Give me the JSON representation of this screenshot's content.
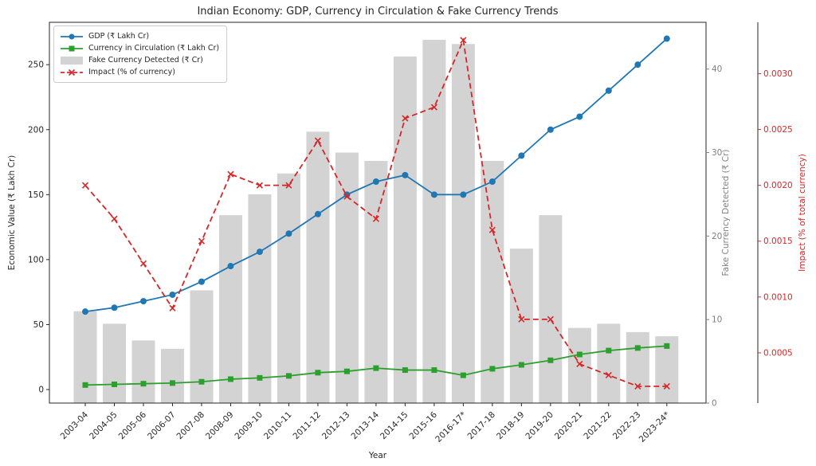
{
  "chart_data": {
    "type": "mixed",
    "title": "Indian Economy: GDP, Currency in Circulation & Fake Currency Trends",
    "xlabel": "Year",
    "categories": [
      "2003-04",
      "2004-05",
      "2005-06",
      "2006-07",
      "2007-08",
      "2008-09",
      "2009-10",
      "2010-11",
      "2011-12",
      "2012-13",
      "2013-14",
      "2014-15",
      "2015-16",
      "2016-17*",
      "2017-18",
      "2018-19",
      "2019-20",
      "2020-21",
      "2021-22",
      "2022-23",
      "2023-24*"
    ],
    "axes": {
      "left": {
        "label": "Economic Value (₹ Lakh Cr)",
        "ticks": [
          0,
          50,
          100,
          150,
          200,
          250
        ],
        "range": [
          -10.4,
          282.6
        ],
        "tick_decimals": 0,
        "color": "#262626"
      },
      "right_inner": {
        "label": "Fake Currency Detected (₹ Cr)",
        "ticks": [
          0,
          10,
          20,
          30,
          40
        ],
        "range": [
          0,
          45.6
        ],
        "tick_decimals": 0,
        "color": "#7f7f7f"
      },
      "right_outer": {
        "label": "Impact (% of total currency)",
        "ticks": [
          0.0005,
          0.001,
          0.0015,
          0.002,
          0.0025,
          0.003
        ],
        "range": [
          5e-05,
          0.00346
        ],
        "tick_decimals": 4,
        "color": "#d62728"
      }
    },
    "series": [
      {
        "name": "GDP (₹ Lakh Cr)",
        "type": "line",
        "marker": "circle",
        "dash": false,
        "axis": "left",
        "color": "#1f77b4",
        "values": [
          60,
          63,
          68,
          73,
          83,
          95,
          106,
          120,
          135,
          150,
          160,
          165,
          150,
          150,
          160,
          180,
          200,
          210,
          230,
          250,
          270
        ]
      },
      {
        "name": "Currency in Circulation (₹ Lakh Cr)",
        "type": "line",
        "marker": "square",
        "dash": false,
        "axis": "left",
        "color": "#2ca02c",
        "values": [
          3.5,
          4,
          4.5,
          5,
          6,
          8,
          9,
          10.5,
          13,
          14,
          16.5,
          15,
          15,
          11,
          16,
          19,
          22.5,
          27,
          30,
          32,
          33.5
        ]
      },
      {
        "name": "Fake Currency Detected (₹ Cr)",
        "type": "bar",
        "axis": "right_inner",
        "color": "#d3d3d3",
        "values": [
          11,
          9.5,
          7.5,
          6.5,
          13.5,
          22.5,
          25,
          27.5,
          32.5,
          30,
          29,
          41.5,
          43.5,
          43,
          29,
          18.5,
          22.5,
          9,
          9.5,
          8.5,
          8
        ]
      },
      {
        "name": "Impact (% of currency)",
        "type": "line",
        "marker": "x",
        "dash": true,
        "axis": "right_outer",
        "color": "#d62728",
        "values": [
          0.002,
          0.0017,
          0.0013,
          0.0009,
          0.0015,
          0.0021,
          0.002,
          0.002,
          0.0024,
          0.0019,
          0.0017,
          0.0026,
          0.0027,
          0.0033,
          0.0016,
          0.0008,
          0.0008,
          0.0004,
          0.0003,
          0.0002,
          0.0002
        ]
      }
    ],
    "legend_position": "upper-left",
    "grid": false
  }
}
